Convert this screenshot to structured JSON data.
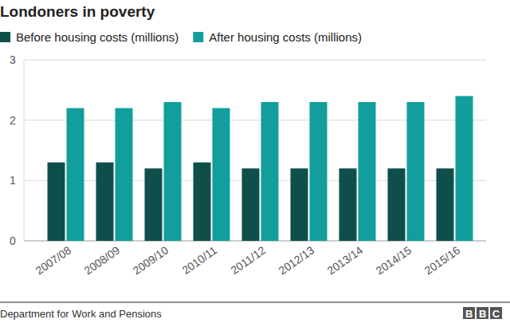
{
  "chart_data": {
    "type": "bar",
    "title": "Londoners in poverty",
    "source": "Department for Work and Pensions",
    "credit": "BBC",
    "categories": [
      "2007/08",
      "2008/09",
      "2009/10",
      "2010/11",
      "2011/12",
      "2012/13",
      "2013/14",
      "2014/15",
      "2015/16"
    ],
    "series": [
      {
        "name": "Before housing costs (millions)",
        "color": "#0f4f4b",
        "values": [
          1.3,
          1.3,
          1.2,
          1.3,
          1.2,
          1.2,
          1.2,
          1.2,
          1.2
        ]
      },
      {
        "name": "After housing costs (millions)",
        "color": "#129e9c",
        "values": [
          2.2,
          2.2,
          2.3,
          2.2,
          2.3,
          2.3,
          2.3,
          2.3,
          2.4
        ]
      }
    ],
    "ylim": [
      0,
      3
    ],
    "yticks": [
      0,
      1,
      2,
      3
    ],
    "grid": true,
    "legend": "top"
  }
}
